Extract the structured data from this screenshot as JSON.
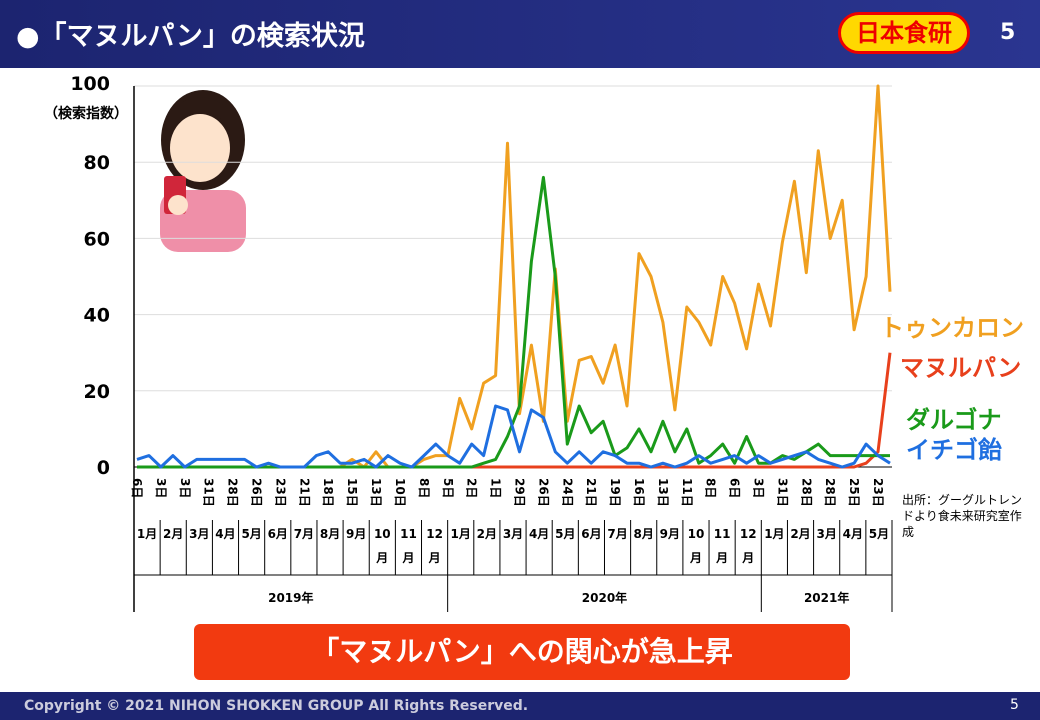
{
  "header": {
    "title": "●「マヌルパン」の検索状況",
    "logo": "日本食研",
    "page": "5"
  },
  "chart_data": {
    "type": "line",
    "y_label_top": "100",
    "y_label": "（検索指数）",
    "ylim": [
      0,
      100
    ],
    "yticks": [
      0,
      20,
      40,
      60,
      80,
      100
    ],
    "grid": true,
    "categories": [
      "6日",
      null,
      "3日",
      null,
      "3日",
      null,
      "31日",
      null,
      "28日",
      null,
      "26日",
      null,
      "23日",
      null,
      "21日",
      null,
      "18日",
      null,
      "15日",
      null,
      "13日",
      null,
      "10日",
      null,
      "8日",
      null,
      "5日",
      null,
      "2日",
      null,
      "1日",
      null,
      "29日",
      null,
      "26日",
      null,
      "24日",
      null,
      "21日",
      null,
      "19日",
      null,
      "16日",
      null,
      "13日",
      null,
      "11日",
      null,
      "8日",
      null,
      "6日",
      null,
      "3日",
      null,
      "31日",
      null,
      "28日",
      null,
      "28日",
      null,
      "25日",
      null,
      "23日",
      null
    ],
    "x_groups": [
      {
        "year": "2019年",
        "months": [
          "1月",
          "2月",
          "3月",
          "4月",
          "5月",
          "6月",
          "7月",
          "8月",
          "9月",
          "10月",
          "11月",
          "12月"
        ]
      },
      {
        "year": "2020年",
        "months": [
          "1月",
          "2月",
          "3月",
          "4月",
          "5月",
          "6月",
          "7月",
          "8月",
          "9月",
          "10月",
          "11月",
          "12月"
        ]
      },
      {
        "year": "2021年",
        "months": [
          "1月",
          "2月",
          "3月",
          "4月",
          "5月"
        ]
      }
    ],
    "series": [
      {
        "name": "トゥンカロン",
        "color": "#f0a020",
        "values": [
          0,
          0,
          0,
          0,
          0,
          0,
          0,
          0,
          0,
          0,
          0,
          0,
          0,
          0,
          0,
          0,
          0,
          0,
          2,
          0,
          4,
          0,
          0,
          0,
          2,
          3,
          3,
          18,
          10,
          22,
          24,
          85,
          14,
          32,
          12,
          52,
          12,
          28,
          29,
          22,
          32,
          16,
          56,
          50,
          38,
          15,
          42,
          38,
          32,
          50,
          43,
          31,
          48,
          37,
          59,
          75,
          51,
          83,
          60,
          70,
          36,
          50,
          100,
          46
        ]
      },
      {
        "name": "マヌルパン",
        "color": "#e8401c",
        "values": [
          0,
          0,
          0,
          0,
          0,
          0,
          0,
          0,
          0,
          0,
          0,
          0,
          0,
          0,
          0,
          0,
          0,
          0,
          0,
          0,
          0,
          0,
          0,
          0,
          0,
          0,
          0,
          0,
          0,
          0,
          0,
          0,
          0,
          0,
          0,
          0,
          0,
          0,
          0,
          0,
          0,
          0,
          0,
          0,
          0,
          0,
          0,
          0,
          0,
          0,
          0,
          0,
          0,
          0,
          0,
          0,
          0,
          0,
          0,
          0,
          0,
          1,
          4,
          30
        ]
      },
      {
        "name": "ダルゴナ",
        "color": "#1a9a1a",
        "values": [
          0,
          0,
          0,
          0,
          0,
          0,
          0,
          0,
          0,
          0,
          0,
          0,
          0,
          0,
          0,
          0,
          0,
          0,
          0,
          0,
          0,
          0,
          0,
          0,
          0,
          0,
          0,
          0,
          0,
          1,
          2,
          8,
          16,
          54,
          76,
          50,
          6,
          16,
          9,
          12,
          3,
          5,
          10,
          4,
          12,
          4,
          10,
          1,
          3,
          6,
          1,
          8,
          1,
          1,
          3,
          2,
          4,
          6,
          3,
          3,
          3,
          3,
          3,
          3
        ]
      },
      {
        "name": "イチゴ飴",
        "color": "#1f6fe0",
        "values": [
          2,
          3,
          0,
          3,
          0,
          2,
          2,
          2,
          2,
          2,
          0,
          1,
          0,
          0,
          0,
          3,
          4,
          1,
          1,
          2,
          0,
          3,
          1,
          0,
          3,
          6,
          3,
          1,
          6,
          3,
          16,
          15,
          4,
          15,
          13,
          4,
          1,
          4,
          1,
          4,
          3,
          1,
          1,
          0,
          1,
          0,
          1,
          3,
          1,
          2,
          3,
          1,
          3,
          1,
          2,
          3,
          4,
          2,
          1,
          0,
          1,
          6,
          3,
          1
        ]
      }
    ],
    "source": "出所：グーグルトレンドより食未来研究室作成"
  },
  "callout": "「マヌルパン」への関心が急上昇",
  "footer": {
    "copyright": "Copyright © 2021 NIHON SHOKKEN GROUP All Rights Reserved.",
    "page": "5"
  }
}
